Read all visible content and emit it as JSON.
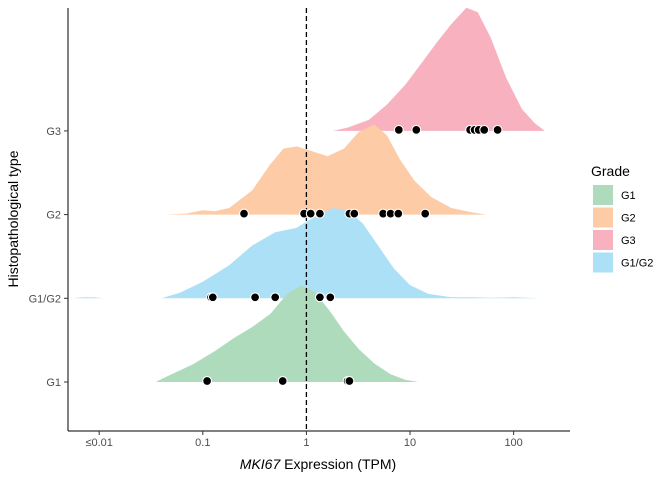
{
  "chart_data": {
    "type": "ridgeline",
    "xlabel_gene": "MKI67",
    "xlabel_rest": " Expression (TPM)",
    "ylabel": "Histopathological type",
    "x_scale": "log10",
    "xlim": [
      0.005,
      350
    ],
    "x_ticks": [
      {
        "value": 0.01,
        "label": "≤0.01"
      },
      {
        "value": 0.1,
        "label": "0.1"
      },
      {
        "value": 1,
        "label": "1"
      },
      {
        "value": 10,
        "label": "10"
      },
      {
        "value": 100,
        "label": "100"
      }
    ],
    "reference_line": {
      "x": 1,
      "style": "dashed"
    },
    "grid": false,
    "legend": {
      "title": "Grade",
      "position": "right",
      "items": [
        {
          "label": "G1",
          "color": "#aedbbb"
        },
        {
          "label": "G2",
          "color": "#fdcba5"
        },
        {
          "label": "G3",
          "color": "#f8b1bf"
        },
        {
          "label": "G1/G2",
          "color": "#ace0f6"
        }
      ]
    },
    "categories": [
      "G1",
      "G1/G2",
      "G2",
      "G3"
    ],
    "series": [
      {
        "name": "G1",
        "color": "#aedbbb",
        "density": [
          [
            0.035,
            0
          ],
          [
            0.05,
            0.07
          ],
          [
            0.08,
            0.16
          ],
          [
            0.13,
            0.28
          ],
          [
            0.2,
            0.4
          ],
          [
            0.3,
            0.5
          ],
          [
            0.45,
            0.62
          ],
          [
            0.65,
            0.8
          ],
          [
            0.9,
            0.88
          ],
          [
            1.2,
            0.82
          ],
          [
            1.7,
            0.64
          ],
          [
            2.3,
            0.46
          ],
          [
            3.2,
            0.3
          ],
          [
            4.5,
            0.17
          ],
          [
            6.5,
            0.07
          ],
          [
            9,
            0.02
          ],
          [
            12,
            0
          ]
        ],
        "points": [
          0.11,
          0.59,
          2.5,
          2.6
        ]
      },
      {
        "name": "G1/G2",
        "color": "#ace0f6",
        "density": [
          [
            0.0055,
            0
          ],
          [
            0.007,
            0.01
          ],
          [
            0.009,
            0.01
          ],
          [
            0.011,
            0
          ],
          [
            0.04,
            0
          ],
          [
            0.06,
            0.05
          ],
          [
            0.1,
            0.15
          ],
          [
            0.18,
            0.3
          ],
          [
            0.3,
            0.48
          ],
          [
            0.5,
            0.6
          ],
          [
            0.8,
            0.64
          ],
          [
            1.2,
            0.74
          ],
          [
            1.8,
            0.82
          ],
          [
            2.5,
            0.8
          ],
          [
            3.5,
            0.68
          ],
          [
            5,
            0.47
          ],
          [
            7,
            0.27
          ],
          [
            10,
            0.12
          ],
          [
            15,
            0.04
          ],
          [
            25,
            0.01
          ],
          [
            40,
            0.01
          ],
          [
            60,
            0.005
          ],
          [
            100,
            0.01
          ],
          [
            180,
            0
          ]
        ],
        "points": [
          0.12,
          0.125,
          0.32,
          0.5,
          1.35,
          1.7
        ]
      },
      {
        "name": "G2",
        "color": "#fdcba5",
        "density": [
          [
            0.045,
            0
          ],
          [
            0.07,
            0.01
          ],
          [
            0.1,
            0.04
          ],
          [
            0.13,
            0.03
          ],
          [
            0.18,
            0.06
          ],
          [
            0.3,
            0.22
          ],
          [
            0.45,
            0.46
          ],
          [
            0.6,
            0.6
          ],
          [
            0.8,
            0.62
          ],
          [
            1.1,
            0.58
          ],
          [
            1.6,
            0.53
          ],
          [
            2.3,
            0.6
          ],
          [
            3.2,
            0.75
          ],
          [
            4.5,
            0.82
          ],
          [
            6,
            0.72
          ],
          [
            8,
            0.5
          ],
          [
            11,
            0.31
          ],
          [
            16,
            0.16
          ],
          [
            25,
            0.06
          ],
          [
            40,
            0.02
          ],
          [
            55,
            0
          ]
        ],
        "points": [
          0.25,
          0.95,
          1.1,
          1.35,
          2.6,
          2.9,
          5.5,
          6.5,
          7.7,
          14
        ]
      },
      {
        "name": "G3",
        "color": "#f8b1bf",
        "density": [
          [
            1.8,
            0
          ],
          [
            2.5,
            0.03
          ],
          [
            4,
            0.1
          ],
          [
            6,
            0.24
          ],
          [
            9,
            0.42
          ],
          [
            13,
            0.62
          ],
          [
            18,
            0.8
          ],
          [
            25,
            0.97
          ],
          [
            35,
            1.12
          ],
          [
            45,
            1.08
          ],
          [
            60,
            0.85
          ],
          [
            85,
            0.48
          ],
          [
            120,
            0.2
          ],
          [
            160,
            0.07
          ],
          [
            200,
            0
          ]
        ],
        "points": [
          7.8,
          11.5,
          38,
          42,
          46,
          52,
          70
        ]
      }
    ]
  }
}
